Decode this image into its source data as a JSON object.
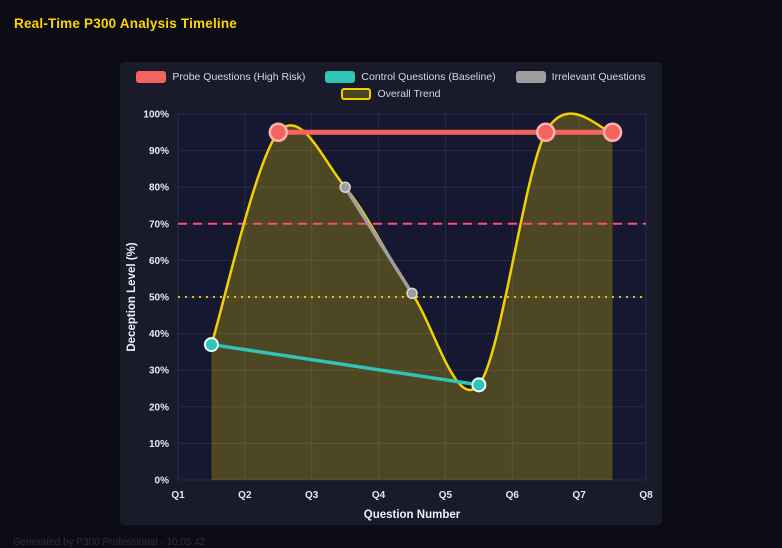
{
  "page": {
    "title": "Real-Time P300 Analysis Timeline",
    "footer": "Generated by P300 Professional - 10:05:42"
  },
  "colors": {
    "title": "#ffd400",
    "page_bg": "#0b0c15",
    "panel_bg": "#191b2a",
    "plot_bg": "#151830",
    "grid": "#282b44",
    "tick_text": "#e6e8f0",
    "axis_title_text": "#eef0f8"
  },
  "chart_data": {
    "type": "line",
    "title": "Real-Time P300 Analysis Timeline",
    "xlabel": "Question Number",
    "ylabel": "Deception Level (%)",
    "x_range": [
      1,
      8
    ],
    "y_range": [
      0,
      100
    ],
    "x_tick_labels": [
      "Q1",
      "Q2",
      "Q3",
      "Q4",
      "Q5",
      "Q6",
      "Q7",
      "Q8"
    ],
    "y_tick_labels": [
      "0%",
      "10%",
      "20%",
      "30%",
      "40%",
      "50%",
      "60%",
      "70%",
      "80%",
      "90%",
      "100%"
    ],
    "grid": true,
    "legend_position": "top",
    "series": [
      {
        "name": "Probe Questions (High Risk)",
        "color": "#f4635e",
        "points": [
          {
            "x": 2.5,
            "y": 95
          },
          {
            "x": 6.5,
            "y": 95
          },
          {
            "x": 7.5,
            "y": 95
          }
        ],
        "line_width": 5,
        "marker_radius": 8.5,
        "marker_stroke": "#ffb0aa",
        "marker_stroke_width": 2.5,
        "smooth": false,
        "fill": false
      },
      {
        "name": "Control Questions (Baseline)",
        "color": "#2ec4b6",
        "points": [
          {
            "x": 1.5,
            "y": 37
          },
          {
            "x": 5.5,
            "y": 26
          }
        ],
        "line_width": 3.5,
        "marker_radius": 6.5,
        "marker_stroke": "#eafcf9",
        "marker_stroke_width": 2,
        "smooth": false,
        "fill": false
      },
      {
        "name": "Irrelevant Questions",
        "color": "#9e9e9e",
        "points": [
          {
            "x": 3.5,
            "y": 80
          },
          {
            "x": 4.5,
            "y": 51
          }
        ],
        "line_width": 3.5,
        "marker_radius": 5,
        "marker_stroke": "#d9d9d9",
        "marker_stroke_width": 1.5,
        "smooth": false,
        "fill": false
      },
      {
        "name": "Overall Trend",
        "color": "#f2d100",
        "points": [
          {
            "x": 1.5,
            "y": 37
          },
          {
            "x": 2.5,
            "y": 95
          },
          {
            "x": 3.5,
            "y": 80
          },
          {
            "x": 4.5,
            "y": 51
          },
          {
            "x": 5.5,
            "y": 26
          },
          {
            "x": 6.5,
            "y": 95
          },
          {
            "x": 7.5,
            "y": 95
          }
        ],
        "line_width": 2.5,
        "marker_radius": 0,
        "smooth": true,
        "fill": true,
        "fill_opacity": 0.26
      }
    ],
    "thresholds": [
      {
        "value": 70,
        "color": "#ff4d6d",
        "style": "dashed"
      },
      {
        "value": 50,
        "color": "#e6c200",
        "style": "dotted"
      }
    ]
  }
}
